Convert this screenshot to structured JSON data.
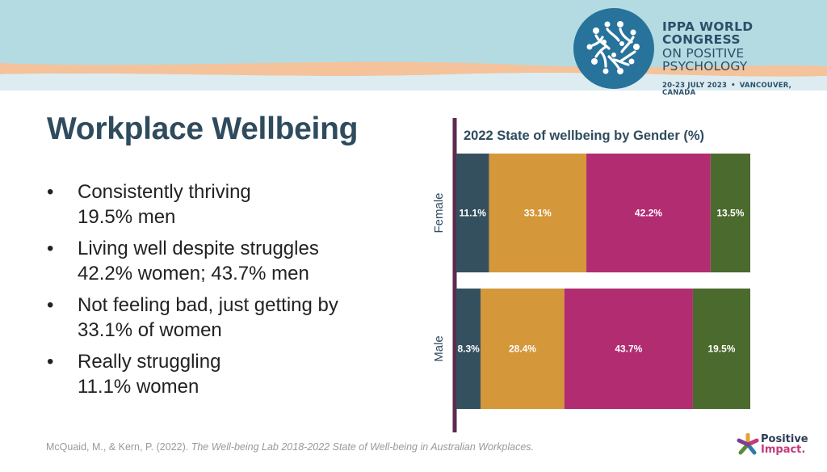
{
  "header": {
    "congress_line1": "IPPA WORLD CONGRESS",
    "congress_line2": "ON POSITIVE PSYCHOLOGY",
    "dates": "20-23 JULY 2023",
    "separator": "•",
    "location": "VANCOUVER, CANADA"
  },
  "title": "Workplace Wellbeing",
  "bullets": [
    {
      "line1": "Consistently thriving",
      "line2": "19.5% men"
    },
    {
      "line1": "Living well despite struggles",
      "line2": "42.2% women; 43.7% men"
    },
    {
      "line1": "Not feeling bad, just getting by",
      "line2": "33.1% of women"
    },
    {
      "line1": "Really struggling",
      "line2": "11.1% women"
    }
  ],
  "bullet_symbol": "•",
  "citation": {
    "authors": "McQuaid, M., & Kern, P. (2022). ",
    "work": "The Well-being Lab 2018-2022 State of Well-being in Australian Workplaces."
  },
  "footer_logo": {
    "line1": "Positive",
    "line2": "Impact."
  },
  "colors": {
    "really_struggling": "#34505f",
    "getting_by": "#d4973a",
    "living_well": "#b22c72",
    "thriving": "#4b6a2e",
    "axis": "#5c2b4e",
    "title_text": "#2f4b5e",
    "banner_top": "#b4dbe1",
    "banner_stripe": "#f4c39b",
    "logo_circle": "#27739b"
  },
  "chart_data": {
    "type": "bar",
    "orientation": "horizontal",
    "stacked": true,
    "title": "2022 State of wellbeing by Gender (%)",
    "categories": [
      "Female",
      "Male"
    ],
    "series": [
      {
        "values": [
          11.1,
          8.3
        ],
        "labels": [
          "11.1%",
          "8.3%"
        ],
        "color": "#34505f"
      },
      {
        "values": [
          33.1,
          28.4
        ],
        "labels": [
          "33.1%",
          "28.4%"
        ],
        "color": "#d4973a"
      },
      {
        "values": [
          42.2,
          43.7
        ],
        "labels": [
          "42.2%",
          "43.7%"
        ],
        "color": "#b22c72"
      },
      {
        "values": [
          13.5,
          19.5
        ],
        "labels": [
          "13.5%",
          "19.5%"
        ],
        "color": "#4b6a2e"
      }
    ],
    "xlim": [
      0,
      100
    ],
    "grid": false,
    "legend": "none"
  }
}
